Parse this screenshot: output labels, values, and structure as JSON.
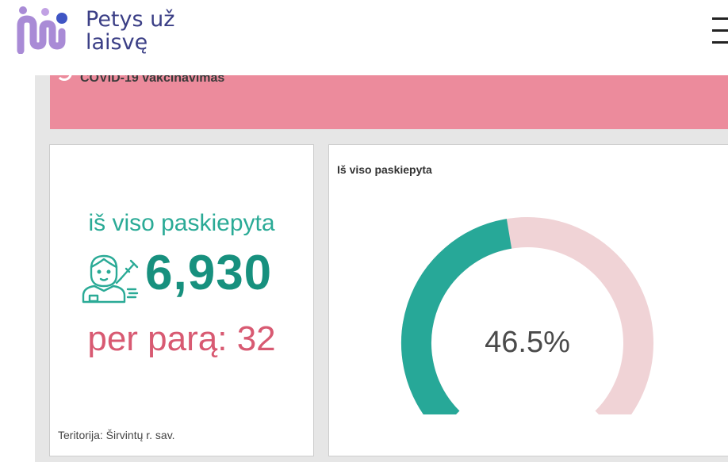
{
  "header": {
    "brand_line1": "Petys už",
    "brand_line2": "laisvę"
  },
  "banner": {
    "title": "COVID-19 vakcinavimas"
  },
  "kpi": {
    "label": "iš viso paskiepyta",
    "value": "6,930",
    "per_day": "per parą: 32",
    "territory": "Teritorija: Širvintų r. sav."
  },
  "gauge": {
    "title": "Iš viso paskiepyta",
    "value_label": "46.5%",
    "fraction": 0.465,
    "fill_color": "#27a898",
    "track_color": "#f0d3d6"
  },
  "colors": {
    "banner": "#ec8b9c",
    "kpi_label": "#2aaa96",
    "kpi_value": "#17907e",
    "per_day": "#d85a72"
  },
  "icons": {
    "logo": "people-logo-icon",
    "menu": "hamburger-menu-icon",
    "vaccine": "vaccinated-person-icon"
  }
}
